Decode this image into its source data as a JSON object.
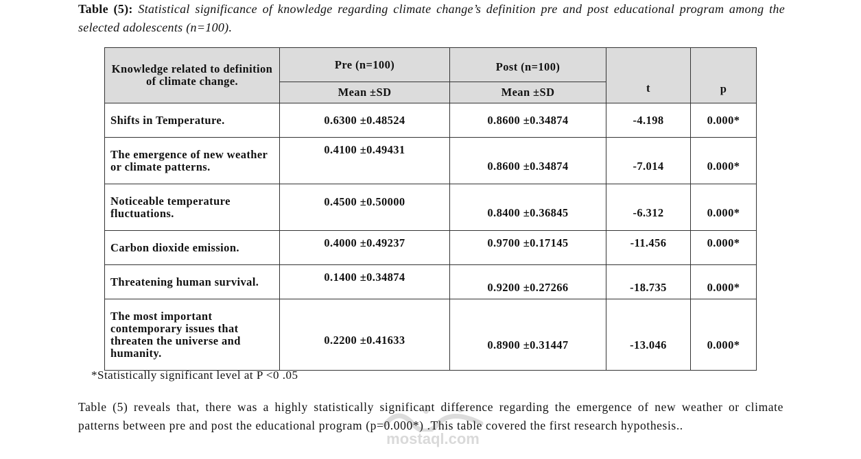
{
  "caption": {
    "label": "Table (5):",
    "text": "Statistical significance of knowledge regarding climate change’s definition pre and post educational program among the selected adolescents (n=100)."
  },
  "table": {
    "header": {
      "item": "Knowledge related to definition of climate change.",
      "pre_group": "Pre (n=100)",
      "post_group": "Post (n=100)",
      "pre_sub": "Mean  ±SD",
      "post_sub": "Mean  ±SD",
      "t": "t",
      "p": "p"
    },
    "rows": [
      {
        "item": "Shifts in Temperature.",
        "pre": "0.6300 ±0.48524",
        "post": "0.8600 ±0.34874",
        "t": "-4.198",
        "p": "0.000*"
      },
      {
        "item": "The emergence of new weather or climate patterns.",
        "pre": "0.4100 ±0.49431",
        "post": "0.8600 ±0.34874",
        "t": "-7.014",
        "p": "0.000*"
      },
      {
        "item": "Noticeable temperature fluctuations.",
        "pre": "0.4500 ±0.50000",
        "post": "0.8400 ±0.36845",
        "t": "-6.312",
        "p": "0.000*"
      },
      {
        "item": "Carbon dioxide emission.",
        "pre": "0.4000 ±0.49237",
        "post": "0.9700 ±0.17145",
        "t": "-11.456",
        "p": "0.000*"
      },
      {
        "item": "Threatening human survival.",
        "pre": "0.1400  ±0.34874",
        "post": "0.9200 ±0.27266",
        "t": "-18.735",
        "p": "0.000*"
      },
      {
        "item": "The most important contemporary issues that threaten the universe and humanity.",
        "pre": "0.2200 ±0.41633",
        "post": "0.8900 ±0.31447",
        "t": "-13.046",
        "p": "0.000*"
      }
    ]
  },
  "footnote": "*Statistically significant level at P <0 .05",
  "paragraph": "Table (5) reveals that, there was a highly statistically significant difference regarding the emergence of new weather or climate patterns between pre and post the educational program (p=0.000*) .This table covered the first research hypothesis..",
  "watermark": {
    "text": "mostaql.com"
  }
}
